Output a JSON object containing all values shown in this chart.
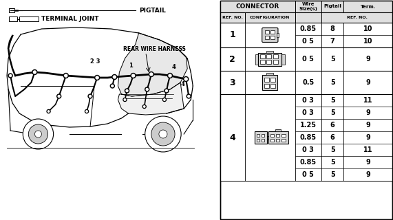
{
  "bg_color": "#ffffff",
  "left_labels": {
    "pigtail": "PIGTAIL",
    "terminal_joint": "TERMINAL JOINT",
    "rear_wire_harness": "REAR WIRE HARNESS"
  },
  "g1_data": [
    [
      "0.85",
      "8",
      "10"
    ],
    [
      "0 5",
      "7",
      "10"
    ]
  ],
  "g2_data": [
    [
      "0 5",
      "5",
      "9"
    ]
  ],
  "g3_data": [
    [
      "0.5",
      "5",
      "9"
    ]
  ],
  "g4_data": [
    [
      "0 3",
      "5",
      "11"
    ],
    [
      "0 3",
      "5",
      "9"
    ],
    [
      "1.25",
      "6",
      "9"
    ],
    [
      "0.85",
      "6",
      "9"
    ],
    [
      "0 3",
      "5",
      "11"
    ],
    [
      "0.85",
      "5",
      "9"
    ],
    [
      "0 5",
      "5",
      "9"
    ]
  ]
}
